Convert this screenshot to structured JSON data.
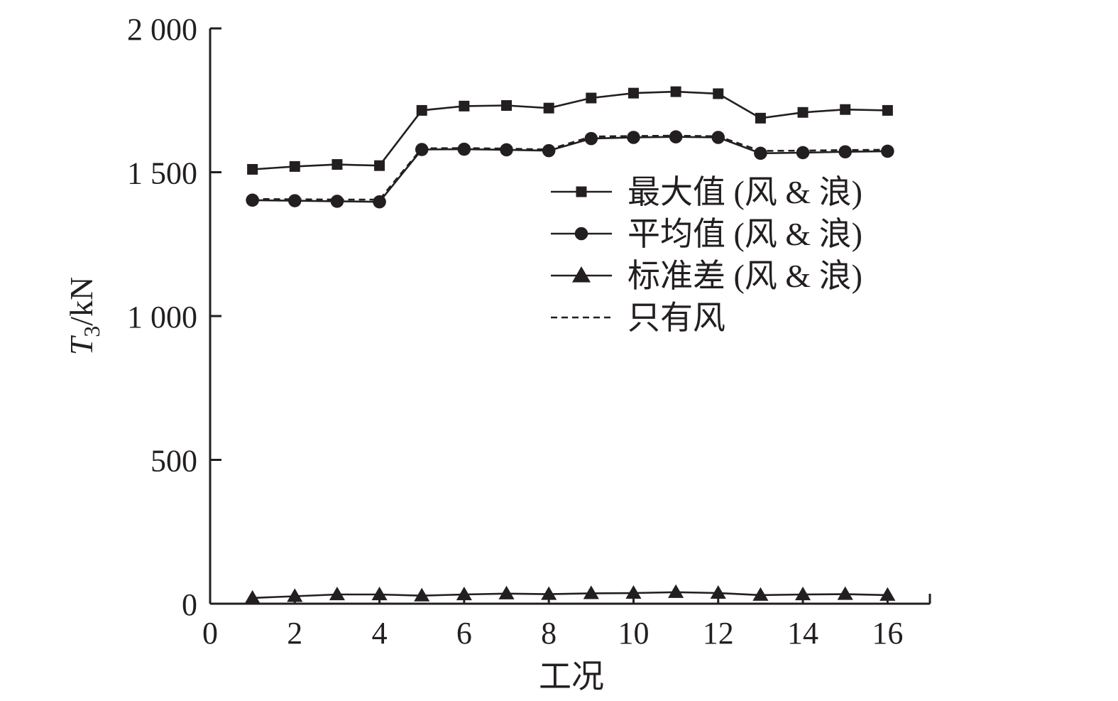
{
  "chart_data": {
    "type": "line",
    "title": "",
    "xlabel": "工况",
    "ylabel": {
      "main": "T",
      "sub": "3",
      "unit": "/kN"
    },
    "xlim": [
      0,
      17
    ],
    "ylim": [
      0,
      2000
    ],
    "x_ticks": [
      0,
      2,
      4,
      6,
      8,
      10,
      12,
      14,
      16
    ],
    "x_tick_labels": [
      "0",
      "2",
      "4",
      "6",
      "8",
      "10",
      "12",
      "14",
      "16"
    ],
    "y_ticks": [
      0,
      500,
      1000,
      1500,
      2000
    ],
    "y_tick_labels": [
      "0",
      "500",
      "1 000",
      "1 500",
      "2 000"
    ],
    "grid": false,
    "legend_position": "upper-right",
    "x": [
      1,
      2,
      3,
      4,
      5,
      6,
      7,
      8,
      9,
      10,
      11,
      12,
      13,
      14,
      15,
      16
    ],
    "series": [
      {
        "name": "最大值 (风 & 浪)",
        "marker": "square",
        "line": "solid",
        "color": "#231f20",
        "values": [
          1510,
          1520,
          1527,
          1523,
          1715,
          1730,
          1732,
          1723,
          1758,
          1775,
          1780,
          1773,
          1688,
          1708,
          1718,
          1715
        ]
      },
      {
        "name": "平均值 (风 & 浪)",
        "marker": "circle",
        "line": "solid",
        "color": "#231f20",
        "values": [
          1403,
          1401,
          1399,
          1397,
          1579,
          1580,
          1578,
          1575,
          1617,
          1621,
          1623,
          1621,
          1566,
          1568,
          1571,
          1573
        ]
      },
      {
        "name": "标准差 (风 & 浪)",
        "marker": "triangle",
        "line": "solid",
        "color": "#231f20",
        "values": [
          20,
          26,
          32,
          32,
          28,
          32,
          35,
          33,
          36,
          37,
          40,
          37,
          30,
          32,
          33,
          30
        ]
      },
      {
        "name": "只有风",
        "marker": "none",
        "line": "dashed",
        "color": "#231f20",
        "values": [
          1407,
          1406,
          1405,
          1405,
          1583,
          1584,
          1582,
          1579,
          1624,
          1626,
          1627,
          1625,
          1574,
          1575,
          1577,
          1578
        ]
      }
    ]
  }
}
